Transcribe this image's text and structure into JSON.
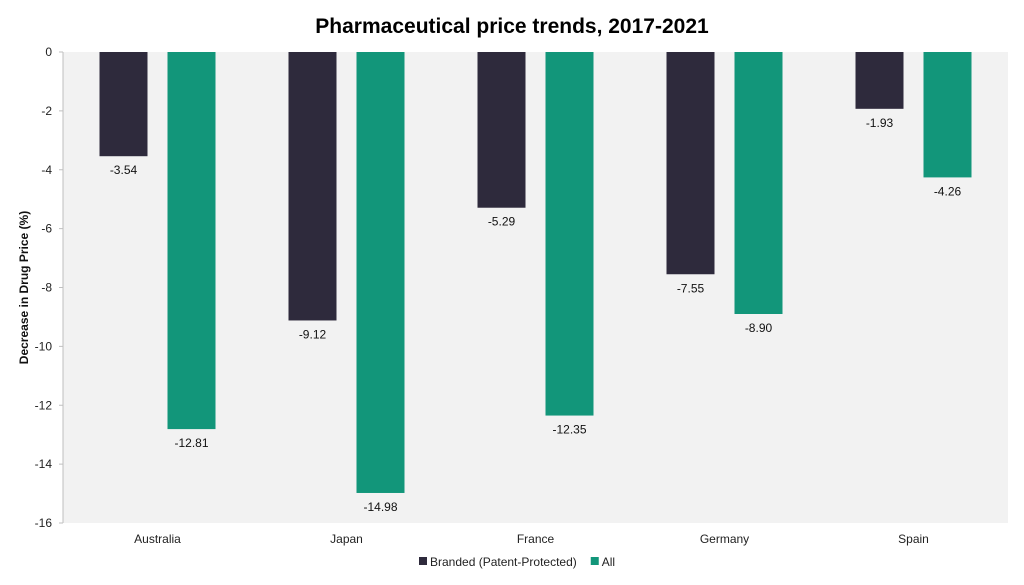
{
  "chart_data": {
    "type": "bar",
    "title": "Pharmaceutical price trends, 2017-2021",
    "xlabel": "",
    "ylabel": "Decrease in Drug Price (%)",
    "categories": [
      "Australia",
      "Japan",
      "France",
      "Germany",
      "Spain"
    ],
    "series": [
      {
        "name": "Branded (Patent-Protected)",
        "values": [
          -3.54,
          -9.12,
          -5.29,
          -7.55,
          -1.93
        ],
        "labels": [
          "-3.54",
          "-9.12",
          "-5.29",
          "-7.55",
          "-1.93"
        ],
        "color": "#2e2a3c"
      },
      {
        "name": "All",
        "values": [
          -12.81,
          -14.98,
          -12.35,
          -8.9,
          -4.26
        ],
        "labels": [
          "-12.81",
          "-14.98",
          "-12.35",
          "-8.90",
          "-4.26"
        ],
        "color": "#12967a"
      }
    ],
    "ylim": [
      -16,
      0
    ],
    "yticks": [
      0,
      -2,
      -4,
      -6,
      -8,
      -10,
      -12,
      -14,
      -16
    ],
    "grid": false,
    "plot_background": "#f2f2f2",
    "legend_position": "bottom-center"
  }
}
